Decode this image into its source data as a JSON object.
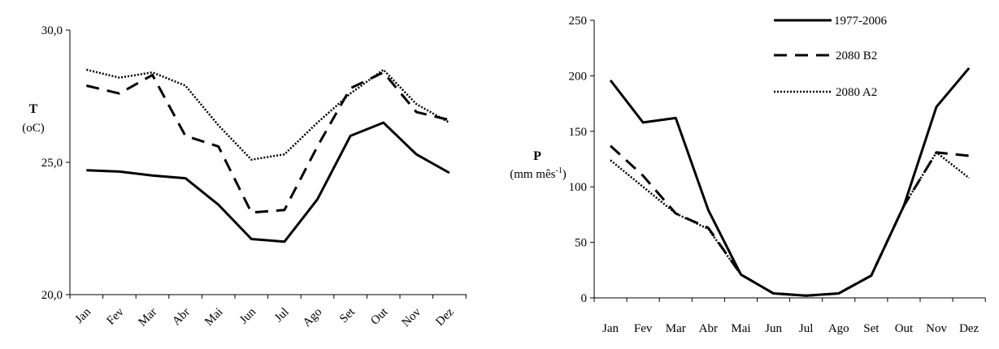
{
  "figure": {
    "legend": [
      {
        "label": "1977-2006",
        "style": "solid"
      },
      {
        "label": "2080 B2",
        "style": "dashed"
      },
      {
        "label": "2080 A2",
        "style": "dotted"
      }
    ]
  },
  "chart_data": [
    {
      "type": "line",
      "ylabel": "T",
      "yunit": "(oC)",
      "categories": [
        "Jan",
        "Fev",
        "Mar",
        "Abr",
        "Mai",
        "Jun",
        "Jul",
        "Ago",
        "Set",
        "Out",
        "Nov",
        "Dez"
      ],
      "ylim": [
        20,
        30
      ],
      "yticks": [
        "20,0",
        "25,0",
        "30,0"
      ],
      "ytick_values": [
        20,
        25,
        30
      ],
      "x_tick_rotation": "-45",
      "grid": false,
      "series": [
        {
          "name": "1977-2006",
          "style": "solid",
          "values": [
            24.7,
            24.65,
            24.5,
            24.4,
            23.4,
            22.1,
            22.0,
            23.6,
            26.0,
            26.5,
            25.3,
            24.6
          ]
        },
        {
          "name": "2080 B2",
          "style": "dashed",
          "values": [
            27.9,
            27.6,
            28.3,
            26.0,
            25.6,
            23.1,
            23.2,
            25.6,
            27.8,
            28.4,
            26.9,
            26.6
          ]
        },
        {
          "name": "2080 A2",
          "style": "dotted",
          "values": [
            28.5,
            28.2,
            28.4,
            27.9,
            26.4,
            25.1,
            25.3,
            26.5,
            27.6,
            28.5,
            27.2,
            26.5
          ]
        }
      ]
    },
    {
      "type": "line",
      "ylabel": "P",
      "yunit": "(mm mês",
      "yunit_sup": "-1",
      "yunit_end": ")",
      "categories": [
        "Jan",
        "Fev",
        "Mar",
        "Abr",
        "Mai",
        "Jun",
        "Jul",
        "Ago",
        "Set",
        "Out",
        "Nov",
        "Dez"
      ],
      "ylim": [
        0,
        250
      ],
      "yticks": [
        "0",
        "50",
        "100",
        "150",
        "200",
        "250"
      ],
      "ytick_values": [
        0,
        50,
        100,
        150,
        200,
        250
      ],
      "grid": false,
      "legend_position": "top-right",
      "series": [
        {
          "name": "1977-2006",
          "style": "solid",
          "values": [
            196,
            158,
            162,
            79,
            21,
            4,
            2,
            4,
            20,
            83,
            172,
            207
          ]
        },
        {
          "name": "2080 B2",
          "style": "dashed",
          "values": [
            137,
            110,
            76,
            63,
            21,
            4,
            2,
            4,
            20,
            83,
            131,
            128
          ]
        },
        {
          "name": "2080 A2",
          "style": "dotted",
          "values": [
            124,
            100,
            76,
            62,
            21,
            4,
            2,
            4,
            20,
            83,
            131,
            108
          ]
        }
      ]
    }
  ]
}
